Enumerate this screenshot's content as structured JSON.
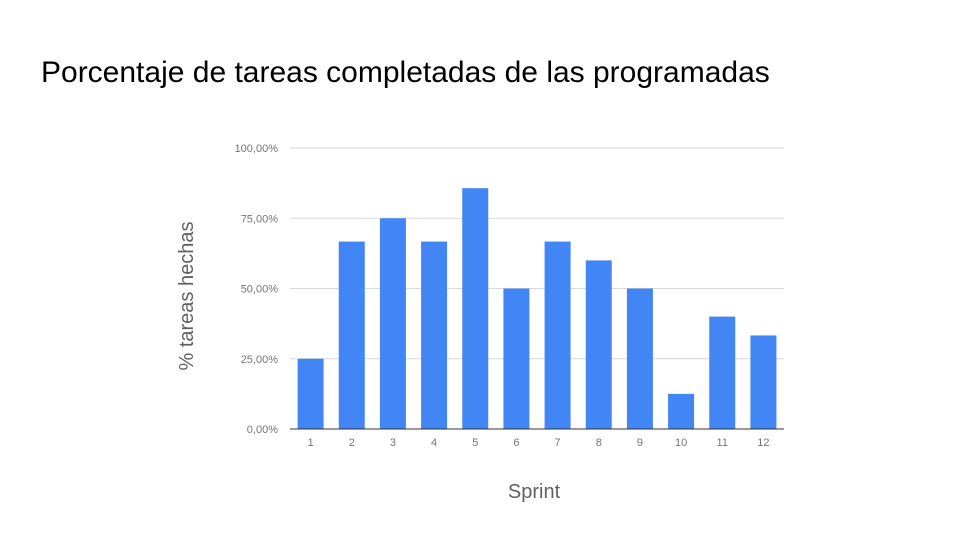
{
  "slide": {
    "title": "Porcentaje de tareas completadas de las programadas"
  },
  "chart_data": {
    "type": "bar",
    "title": "",
    "xlabel": "Sprint",
    "ylabel": "% tareas hechas",
    "categories": [
      "1",
      "2",
      "3",
      "4",
      "5",
      "6",
      "7",
      "8",
      "9",
      "10",
      "11",
      "12"
    ],
    "values": [
      25,
      66.7,
      75,
      66.7,
      85.7,
      50,
      66.7,
      60,
      50,
      12.5,
      40,
      33.3
    ],
    "ylim": [
      0,
      100
    ],
    "yticks": [
      0,
      25,
      50,
      75,
      100
    ],
    "ytick_labels": [
      "0,00%",
      "25,00%",
      "50,00%",
      "75,00%",
      "100,00%"
    ],
    "grid": true,
    "legend": "none",
    "colors": {
      "bar": "#4285f4",
      "grid": "#d9d9d9",
      "axis": "#333333"
    }
  }
}
